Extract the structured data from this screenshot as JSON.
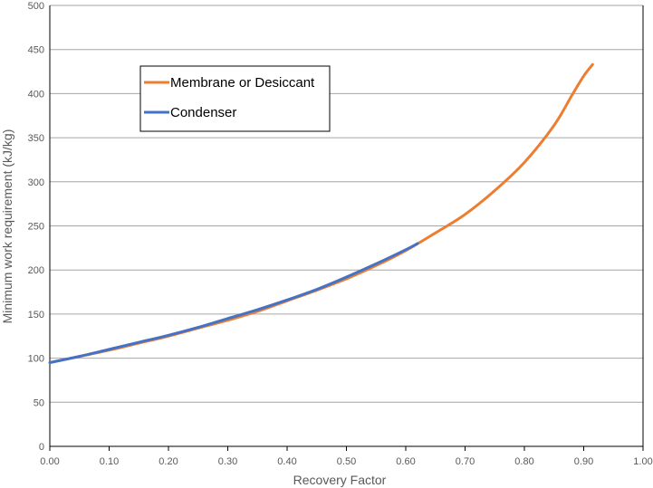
{
  "chart_data": {
    "type": "line",
    "title": "",
    "xlabel": "Recovery Factor",
    "ylabel": "Minimum work requirement (kJ/kg)",
    "xlim": [
      0,
      1
    ],
    "ylim": [
      0,
      500
    ],
    "xticks": [
      "0.00",
      "0.10",
      "0.20",
      "0.30",
      "0.40",
      "0.50",
      "0.60",
      "0.70",
      "0.80",
      "0.90",
      "1.00"
    ],
    "yticks": [
      "0",
      "50",
      "100",
      "150",
      "200",
      "250",
      "300",
      "350",
      "400",
      "450",
      "500"
    ],
    "grid": "horizontal",
    "legend": "upper-left",
    "series": [
      {
        "name": "Membrane or Desiccant",
        "color": "#ED7D31",
        "x": [
          0.0,
          0.05,
          0.1,
          0.15,
          0.2,
          0.25,
          0.3,
          0.35,
          0.4,
          0.45,
          0.5,
          0.55,
          0.6,
          0.65,
          0.7,
          0.75,
          0.8,
          0.85,
          0.88,
          0.9,
          0.915
        ],
        "y": [
          95,
          102,
          109,
          117,
          125,
          134,
          143,
          153,
          165,
          177,
          190,
          205,
          222,
          242,
          263,
          290,
          322,
          364,
          398,
          420,
          433
        ]
      },
      {
        "name": "Condenser",
        "color": "#4472C4",
        "x": [
          0.0,
          0.05,
          0.1,
          0.15,
          0.2,
          0.25,
          0.3,
          0.35,
          0.4,
          0.45,
          0.5,
          0.55,
          0.6,
          0.62
        ],
        "y": [
          95,
          102,
          110,
          118,
          126,
          135,
          145,
          155,
          166,
          178,
          192,
          207,
          223,
          230
        ]
      }
    ]
  }
}
